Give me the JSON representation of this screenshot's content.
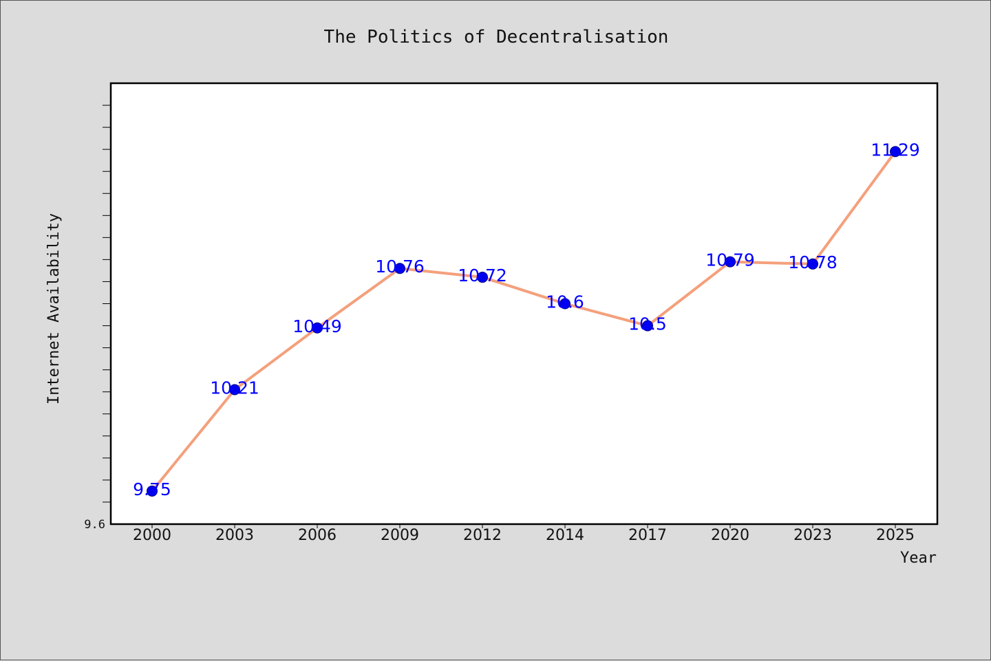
{
  "chart_data": {
    "type": "line",
    "title": "The Politics of Decentralisation",
    "xlabel": "Year",
    "ylabel": "Internet Availability",
    "categories": [
      "2000",
      "2003",
      "2006",
      "2009",
      "2012",
      "2014",
      "2017",
      "2020",
      "2023",
      "2025"
    ],
    "series": [
      {
        "values": [
          9.75,
          10.21,
          10.49,
          10.76,
          10.72,
          10.6,
          10.5,
          10.79,
          10.78,
          11.29
        ]
      }
    ],
    "data_labels": [
      "9.75",
      "10.21",
      "10.49",
      "10.76",
      "10.72",
      "10.6",
      "10.5",
      "10.79",
      "10.78",
      "11.29"
    ],
    "ylim": [
      9.6,
      11.6
    ],
    "y_tick_labels": [
      "9.6"
    ],
    "grid": false,
    "legend": "none",
    "colors": {
      "line": "#f4a07c",
      "marker": "#0000ee",
      "data_label": "#0000ff",
      "background": "#dcdcdc",
      "plot_background": "#ffffff"
    }
  }
}
